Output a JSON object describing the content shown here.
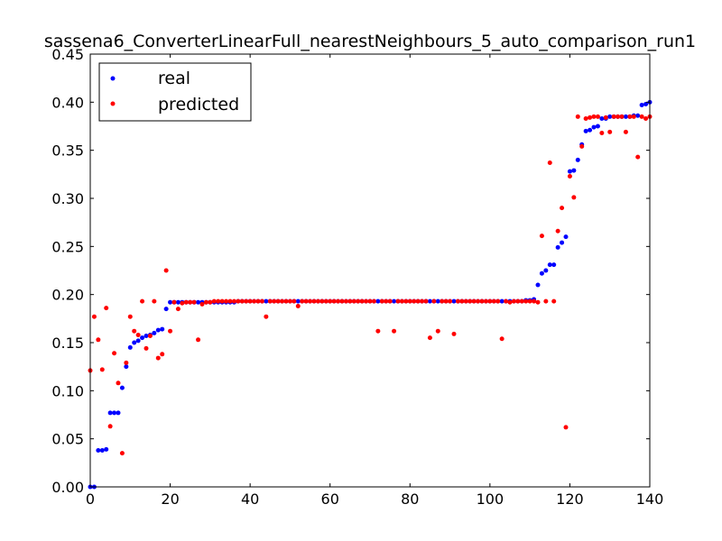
{
  "chart_data": {
    "type": "scatter",
    "title": "sassena6_ConverterLinearFull_nearestNeighbours_5_auto_comparison_run1",
    "xlabel": "",
    "ylabel": "",
    "xlim": [
      0,
      140
    ],
    "ylim": [
      0.0,
      0.45
    ],
    "grid": false,
    "legend_position": "upper-left",
    "x_ticks": [
      "0",
      "20",
      "40",
      "60",
      "80",
      "100",
      "120",
      "140"
    ],
    "y_ticks": [
      "0.00",
      "0.05",
      "0.10",
      "0.15",
      "0.20",
      "0.25",
      "0.30",
      "0.35",
      "0.40",
      "0.45"
    ],
    "series": [
      {
        "name": "real",
        "color": "#0000ff",
        "x": [
          0,
          1,
          2,
          3,
          4,
          5,
          6,
          7,
          8,
          9,
          10,
          11,
          12,
          13,
          14,
          15,
          16,
          17,
          18,
          19,
          20,
          21,
          22,
          23,
          24,
          25,
          26,
          27,
          28,
          29,
          30,
          31,
          32,
          33,
          34,
          35,
          36,
          37,
          38,
          39,
          40,
          41,
          42,
          43,
          44,
          45,
          46,
          47,
          48,
          49,
          50,
          51,
          52,
          53,
          54,
          55,
          56,
          57,
          58,
          59,
          60,
          61,
          62,
          63,
          64,
          65,
          66,
          67,
          68,
          69,
          70,
          71,
          72,
          73,
          74,
          75,
          76,
          77,
          78,
          79,
          80,
          81,
          82,
          83,
          84,
          85,
          86,
          87,
          88,
          89,
          90,
          91,
          92,
          93,
          94,
          95,
          96,
          97,
          98,
          99,
          100,
          101,
          102,
          103,
          104,
          105,
          106,
          107,
          108,
          109,
          110,
          111,
          112,
          113,
          114,
          115,
          116,
          117,
          118,
          119,
          120,
          121,
          122,
          123,
          124,
          125,
          126,
          127,
          128,
          129,
          130,
          131,
          132,
          133,
          134,
          135,
          136,
          137,
          138,
          139,
          140
        ],
        "y": [
          0.0,
          0.0,
          0.038,
          0.038,
          0.039,
          0.077,
          0.077,
          0.077,
          0.103,
          0.125,
          0.145,
          0.15,
          0.152,
          0.155,
          0.157,
          0.158,
          0.16,
          0.163,
          0.164,
          0.185,
          0.192,
          0.192,
          0.192,
          0.192,
          0.192,
          0.192,
          0.192,
          0.192,
          0.192,
          0.192,
          0.192,
          0.192,
          0.192,
          0.192,
          0.192,
          0.192,
          0.192,
          0.193,
          0.193,
          0.193,
          0.193,
          0.193,
          0.193,
          0.193,
          0.193,
          0.193,
          0.193,
          0.193,
          0.193,
          0.193,
          0.193,
          0.193,
          0.193,
          0.193,
          0.193,
          0.193,
          0.193,
          0.193,
          0.193,
          0.193,
          0.193,
          0.193,
          0.193,
          0.193,
          0.193,
          0.193,
          0.193,
          0.193,
          0.193,
          0.193,
          0.193,
          0.193,
          0.193,
          0.193,
          0.193,
          0.193,
          0.193,
          0.193,
          0.193,
          0.193,
          0.193,
          0.193,
          0.193,
          0.193,
          0.193,
          0.193,
          0.193,
          0.193,
          0.193,
          0.193,
          0.193,
          0.193,
          0.193,
          0.193,
          0.193,
          0.193,
          0.193,
          0.193,
          0.193,
          0.193,
          0.193,
          0.193,
          0.193,
          0.193,
          0.193,
          0.193,
          0.193,
          0.193,
          0.193,
          0.194,
          0.194,
          0.195,
          0.21,
          0.222,
          0.225,
          0.231,
          0.231,
          0.249,
          0.254,
          0.26,
          0.328,
          0.329,
          0.34,
          0.356,
          0.37,
          0.371,
          0.374,
          0.375,
          0.383,
          0.383,
          0.385,
          0.385,
          0.385,
          0.385,
          0.385,
          0.385,
          0.386,
          0.386,
          0.397,
          0.398,
          0.4
        ]
      },
      {
        "name": "predicted",
        "color": "#ff0000",
        "x": [
          0,
          1,
          2,
          3,
          4,
          5,
          6,
          7,
          8,
          9,
          10,
          11,
          12,
          13,
          14,
          15,
          16,
          17,
          18,
          19,
          20,
          21,
          22,
          23,
          24,
          25,
          26,
          27,
          28,
          29,
          30,
          31,
          32,
          33,
          34,
          35,
          36,
          37,
          38,
          39,
          40,
          41,
          42,
          43,
          44,
          45,
          46,
          47,
          48,
          49,
          50,
          51,
          52,
          53,
          54,
          55,
          56,
          57,
          58,
          59,
          60,
          61,
          62,
          63,
          64,
          65,
          66,
          67,
          68,
          69,
          70,
          71,
          72,
          73,
          74,
          75,
          76,
          77,
          78,
          79,
          80,
          81,
          82,
          83,
          84,
          85,
          86,
          87,
          88,
          89,
          90,
          91,
          92,
          93,
          94,
          95,
          96,
          97,
          98,
          99,
          100,
          101,
          102,
          103,
          104,
          105,
          106,
          107,
          108,
          109,
          110,
          111,
          112,
          113,
          114,
          115,
          116,
          117,
          118,
          119,
          120,
          121,
          122,
          123,
          124,
          125,
          126,
          127,
          128,
          129,
          130,
          131,
          132,
          133,
          134,
          135,
          136,
          137,
          138,
          139,
          140
        ],
        "y": [
          0.121,
          0.177,
          0.153,
          0.122,
          0.186,
          0.063,
          0.139,
          0.108,
          0.035,
          0.129,
          0.177,
          0.162,
          0.158,
          0.193,
          0.144,
          0.157,
          0.193,
          0.134,
          0.138,
          0.225,
          0.162,
          0.192,
          0.185,
          0.191,
          0.192,
          0.192,
          0.192,
          0.153,
          0.19,
          0.192,
          0.192,
          0.193,
          0.193,
          0.193,
          0.193,
          0.193,
          0.193,
          0.193,
          0.193,
          0.193,
          0.193,
          0.193,
          0.193,
          0.193,
          0.177,
          0.193,
          0.193,
          0.193,
          0.193,
          0.193,
          0.193,
          0.193,
          0.188,
          0.193,
          0.193,
          0.193,
          0.193,
          0.193,
          0.193,
          0.193,
          0.193,
          0.193,
          0.193,
          0.193,
          0.193,
          0.193,
          0.193,
          0.193,
          0.193,
          0.193,
          0.193,
          0.193,
          0.162,
          0.193,
          0.193,
          0.193,
          0.162,
          0.193,
          0.193,
          0.193,
          0.193,
          0.193,
          0.193,
          0.193,
          0.193,
          0.155,
          0.193,
          0.162,
          0.193,
          0.193,
          0.193,
          0.159,
          0.193,
          0.193,
          0.193,
          0.193,
          0.193,
          0.193,
          0.193,
          0.193,
          0.193,
          0.193,
          0.193,
          0.154,
          0.193,
          0.192,
          0.193,
          0.193,
          0.193,
          0.193,
          0.193,
          0.193,
          0.192,
          0.261,
          0.193,
          0.337,
          0.193,
          0.266,
          0.29,
          0.062,
          0.323,
          0.301,
          0.385,
          0.354,
          0.383,
          0.384,
          0.385,
          0.385,
          0.368,
          0.384,
          0.369,
          0.385,
          0.385,
          0.385,
          0.369,
          0.385,
          0.385,
          0.343,
          0.385,
          0.383,
          0.385
        ]
      }
    ]
  }
}
